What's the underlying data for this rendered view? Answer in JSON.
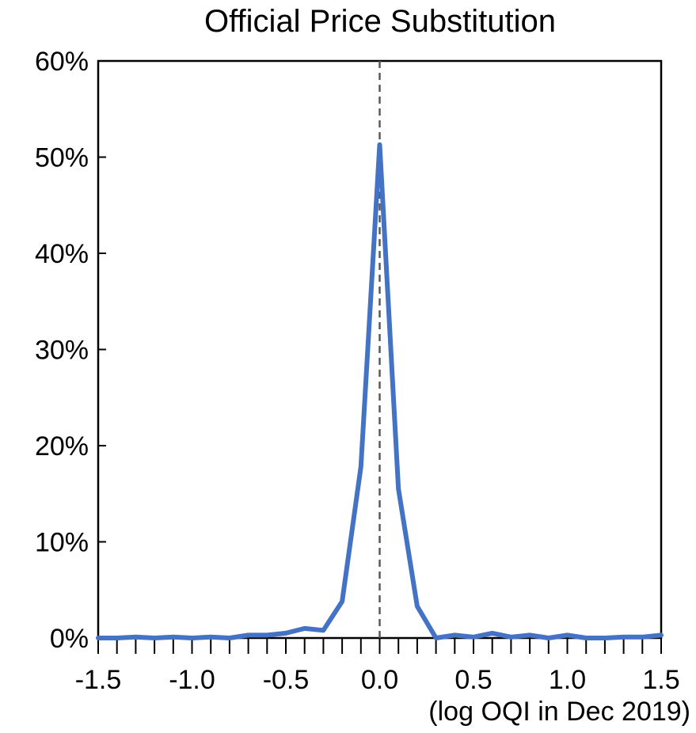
{
  "chart_data": {
    "type": "line",
    "title": "Official Price Substitution",
    "xlabel": "(log OQI in Dec 2019)",
    "ylabel": "",
    "xlim": [
      -1.5,
      1.5
    ],
    "ylim": [
      0,
      0.6
    ],
    "xticks": [
      -1.5,
      -1.0,
      -0.5,
      0.0,
      0.5,
      1.0,
      1.5
    ],
    "xtick_labels": [
      "-1.5",
      "-1.0",
      "-0.5",
      "0.0",
      "0.5",
      "1.0",
      "1.5"
    ],
    "yticks": [
      0,
      0.1,
      0.2,
      0.3,
      0.4,
      0.5,
      0.6
    ],
    "ytick_labels": [
      "0%",
      "10%",
      "20%",
      "30%",
      "40%",
      "50%",
      "60%"
    ],
    "x_minor_tick_step": 0.1,
    "reference_line": {
      "x": 0.0,
      "style": "dashed",
      "color": "#595959"
    },
    "grid": false,
    "legend": "none",
    "series": [
      {
        "color": "#4472C4",
        "x": [
          -1.5,
          -1.4,
          -1.3,
          -1.2,
          -1.1,
          -1.0,
          -0.9,
          -0.8,
          -0.7,
          -0.6,
          -0.5,
          -0.4,
          -0.3,
          -0.2,
          -0.1,
          0.0,
          0.1,
          0.2,
          0.3,
          0.4,
          0.5,
          0.6,
          0.7,
          0.8,
          0.9,
          1.0,
          1.1,
          1.2,
          1.3,
          1.4,
          1.5
        ],
        "y": [
          0.0,
          0.0,
          0.001,
          0.0,
          0.001,
          0.0,
          0.001,
          0.0,
          0.003,
          0.003,
          0.005,
          0.01,
          0.008,
          0.038,
          0.178,
          0.513,
          0.155,
          0.033,
          0.0,
          0.003,
          0.001,
          0.005,
          0.001,
          0.003,
          0.0,
          0.003,
          0.0,
          0.0,
          0.001,
          0.001,
          0.003
        ]
      }
    ]
  }
}
